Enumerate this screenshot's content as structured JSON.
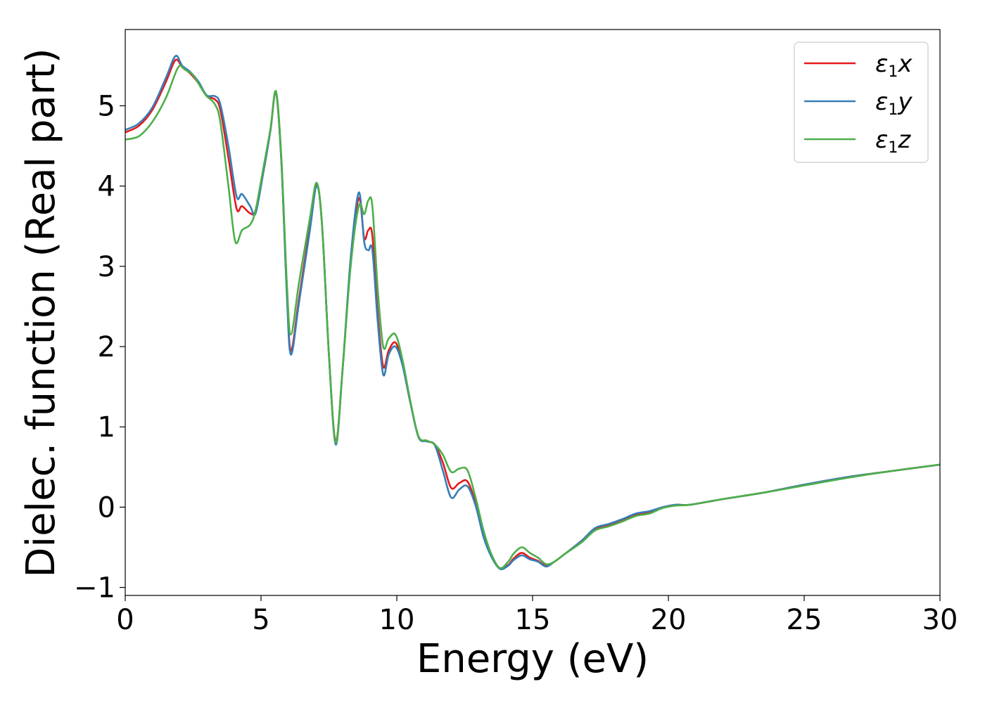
{
  "chart_data": {
    "type": "line",
    "xlabel": "Energy (eV)",
    "ylabel": "Dielec. function (Real part)",
    "xlim": [
      0,
      30
    ],
    "ylim": [
      -1.1,
      5.95
    ],
    "grid": false,
    "legend_position": "top-right",
    "x_ticks": [
      {
        "value": 0,
        "label": "0"
      },
      {
        "value": 5,
        "label": "5"
      },
      {
        "value": 10,
        "label": "10"
      },
      {
        "value": 15,
        "label": "15"
      },
      {
        "value": 20,
        "label": "20"
      },
      {
        "value": 25,
        "label": "25"
      },
      {
        "value": 30,
        "label": "30"
      }
    ],
    "y_ticks": [
      {
        "value": -1,
        "label": "−1"
      },
      {
        "value": 0,
        "label": "0"
      },
      {
        "value": 1,
        "label": "1"
      },
      {
        "value": 2,
        "label": "2"
      },
      {
        "value": 3,
        "label": "3"
      },
      {
        "value": 4,
        "label": "4"
      },
      {
        "value": 5,
        "label": "5"
      }
    ],
    "series": [
      {
        "name": "ε₁x",
        "legend_main": "ε",
        "legend_sub": "1",
        "legend_var": "x",
        "color": "#e41a1c",
        "x": [
          0,
          0.5,
          1.0,
          1.5,
          1.85,
          2.1,
          2.4,
          2.7,
          3.0,
          3.3,
          3.5,
          3.8,
          4.1,
          4.3,
          4.6,
          4.8,
          5.1,
          5.35,
          5.55,
          5.75,
          5.95,
          6.1,
          6.4,
          6.8,
          7.05,
          7.25,
          7.5,
          7.75,
          8.0,
          8.3,
          8.6,
          8.8,
          8.95,
          9.1,
          9.3,
          9.5,
          9.7,
          9.95,
          10.2,
          10.5,
          10.8,
          11.1,
          11.4,
          11.7,
          12.0,
          12.3,
          12.6,
          12.9,
          13.2,
          13.5,
          13.8,
          14.1,
          14.3,
          14.6,
          14.9,
          15.2,
          15.5,
          15.8,
          16.2,
          16.8,
          17.3,
          17.8,
          18.3,
          18.8,
          19.3,
          19.8,
          20.3,
          20.8,
          22.0,
          23.5,
          25.0,
          26.5,
          28.0,
          30.0
        ],
        "y": [
          4.67,
          4.75,
          4.95,
          5.3,
          5.57,
          5.48,
          5.4,
          5.28,
          5.12,
          5.08,
          4.95,
          4.35,
          3.72,
          3.75,
          3.66,
          3.7,
          4.2,
          4.7,
          5.17,
          4.3,
          2.7,
          1.95,
          2.6,
          3.5,
          4.02,
          3.5,
          1.9,
          0.82,
          1.7,
          3.05,
          3.85,
          3.35,
          3.45,
          3.38,
          2.4,
          1.75,
          1.95,
          2.05,
          1.8,
          1.3,
          0.88,
          0.82,
          0.78,
          0.55,
          0.24,
          0.3,
          0.32,
          0.05,
          -0.35,
          -0.62,
          -0.76,
          -0.72,
          -0.64,
          -0.57,
          -0.63,
          -0.67,
          -0.73,
          -0.68,
          -0.58,
          -0.42,
          -0.27,
          -0.22,
          -0.16,
          -0.09,
          -0.06,
          0.0,
          0.03,
          0.03,
          0.1,
          0.18,
          0.28,
          0.37,
          0.44,
          0.53
        ]
      },
      {
        "name": "ε₁y",
        "legend_main": "ε",
        "legend_sub": "1",
        "legend_var": "y",
        "color": "#377eb8",
        "x": [
          0,
          0.5,
          1.0,
          1.5,
          1.85,
          2.1,
          2.4,
          2.7,
          3.0,
          3.3,
          3.5,
          3.8,
          4.1,
          4.3,
          4.6,
          4.8,
          5.1,
          5.35,
          5.55,
          5.75,
          5.95,
          6.1,
          6.4,
          6.8,
          7.05,
          7.25,
          7.5,
          7.75,
          8.0,
          8.3,
          8.6,
          8.8,
          8.95,
          9.1,
          9.3,
          9.5,
          9.7,
          9.95,
          10.2,
          10.5,
          10.8,
          11.1,
          11.4,
          11.7,
          12.0,
          12.3,
          12.6,
          12.9,
          13.2,
          13.5,
          13.8,
          14.1,
          14.3,
          14.6,
          14.9,
          15.2,
          15.5,
          15.8,
          16.2,
          16.8,
          17.3,
          17.8,
          18.3,
          18.8,
          19.3,
          19.8,
          20.3,
          20.8,
          22.0,
          23.5,
          25.0,
          26.5,
          28.0,
          30.0
        ],
        "y": [
          4.7,
          4.78,
          4.98,
          5.35,
          5.62,
          5.5,
          5.42,
          5.3,
          5.13,
          5.12,
          5.02,
          4.5,
          3.87,
          3.9,
          3.75,
          3.66,
          4.2,
          4.7,
          5.17,
          4.3,
          2.65,
          1.9,
          2.55,
          3.45,
          4.0,
          3.5,
          1.9,
          0.78,
          1.7,
          3.1,
          3.92,
          3.3,
          3.2,
          3.2,
          2.3,
          1.65,
          1.9,
          2.0,
          1.78,
          1.3,
          0.87,
          0.82,
          0.77,
          0.45,
          0.12,
          0.22,
          0.26,
          0.02,
          -0.38,
          -0.63,
          -0.77,
          -0.73,
          -0.66,
          -0.6,
          -0.65,
          -0.68,
          -0.74,
          -0.68,
          -0.58,
          -0.42,
          -0.26,
          -0.21,
          -0.15,
          -0.08,
          -0.05,
          0.0,
          0.03,
          0.03,
          0.1,
          0.18,
          0.28,
          0.37,
          0.44,
          0.53
        ]
      },
      {
        "name": "ε₁z",
        "legend_main": "ε",
        "legend_sub": "1",
        "legend_var": "z",
        "color": "#4daf4a",
        "x": [
          0,
          0.5,
          1.0,
          1.5,
          1.95,
          2.2,
          2.5,
          2.8,
          3.0,
          3.3,
          3.5,
          3.8,
          4.05,
          4.3,
          4.6,
          4.8,
          5.1,
          5.35,
          5.55,
          5.75,
          5.95,
          6.1,
          6.4,
          6.8,
          7.05,
          7.25,
          7.5,
          7.75,
          8.0,
          8.3,
          8.6,
          8.8,
          8.95,
          9.1,
          9.3,
          9.5,
          9.7,
          9.95,
          10.2,
          10.5,
          10.8,
          11.1,
          11.4,
          11.7,
          12.0,
          12.3,
          12.6,
          12.9,
          13.2,
          13.5,
          13.8,
          14.1,
          14.3,
          14.6,
          14.9,
          15.2,
          15.5,
          15.8,
          16.2,
          16.8,
          17.3,
          17.8,
          18.3,
          18.8,
          19.3,
          19.8,
          20.3,
          20.8,
          22.0,
          23.5,
          25.0,
          26.5,
          28.0,
          30.0
        ],
        "y": [
          4.58,
          4.62,
          4.8,
          5.1,
          5.48,
          5.45,
          5.38,
          5.22,
          5.12,
          5.02,
          4.8,
          4.0,
          3.31,
          3.45,
          3.52,
          3.7,
          4.25,
          4.72,
          5.18,
          4.35,
          2.8,
          2.15,
          2.8,
          3.6,
          4.04,
          3.5,
          1.9,
          0.8,
          1.7,
          3.0,
          3.75,
          3.65,
          3.82,
          3.75,
          2.7,
          2.0,
          2.1,
          2.15,
          1.85,
          1.32,
          0.88,
          0.83,
          0.78,
          0.65,
          0.44,
          0.48,
          0.46,
          0.12,
          -0.3,
          -0.6,
          -0.76,
          -0.68,
          -0.58,
          -0.5,
          -0.57,
          -0.63,
          -0.71,
          -0.68,
          -0.58,
          -0.44,
          -0.29,
          -0.24,
          -0.18,
          -0.11,
          -0.08,
          -0.01,
          0.02,
          0.03,
          0.1,
          0.18,
          0.27,
          0.36,
          0.44,
          0.53
        ]
      }
    ]
  }
}
